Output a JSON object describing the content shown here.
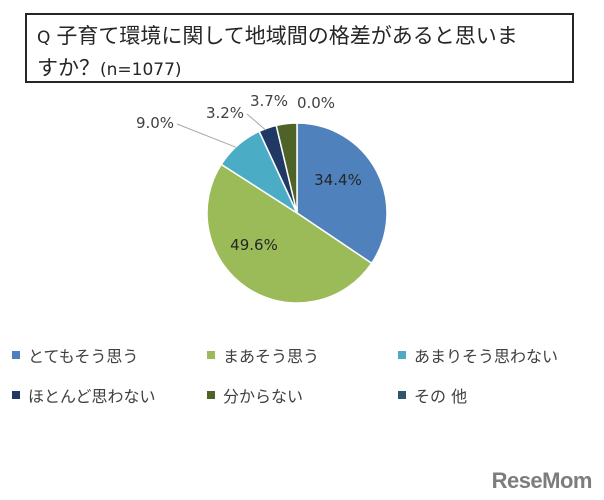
{
  "title": {
    "line1": "子育て環境に関して地域間の格差があると思いま",
    "line2": "すか？",
    "question_mark": "Q",
    "sample_note": "(n=1077)"
  },
  "brand": "ReseMom",
  "chart_data": {
    "type": "pie",
    "title": "Q 子育て環境に関して地域間の格差があると思いますか？ (n=1077)",
    "slices": [
      {
        "label": "とてもそう思う",
        "value": 34.4,
        "display": "34.4%",
        "color": "#4F81BD"
      },
      {
        "label": "まあそう思う",
        "value": 49.6,
        "display": "49.6%",
        "color": "#9BBB59"
      },
      {
        "label": "あまりそう思わない",
        "value": 9.0,
        "display": "9.0%",
        "color": "#4BACC6"
      },
      {
        "label": "ほとんど思わない",
        "value": 3.2,
        "display": "3.2%",
        "color": "#1F3864"
      },
      {
        "label": "分からない",
        "value": 3.7,
        "display": "3.7%",
        "color": "#4F6228"
      },
      {
        "label": "その 他",
        "value": 0.0,
        "display": "0.0%",
        "color": "#31566A"
      }
    ],
    "legend_position": "bottom",
    "label_colors": {
      "inside": "#262626",
      "outside": "#404040"
    }
  }
}
